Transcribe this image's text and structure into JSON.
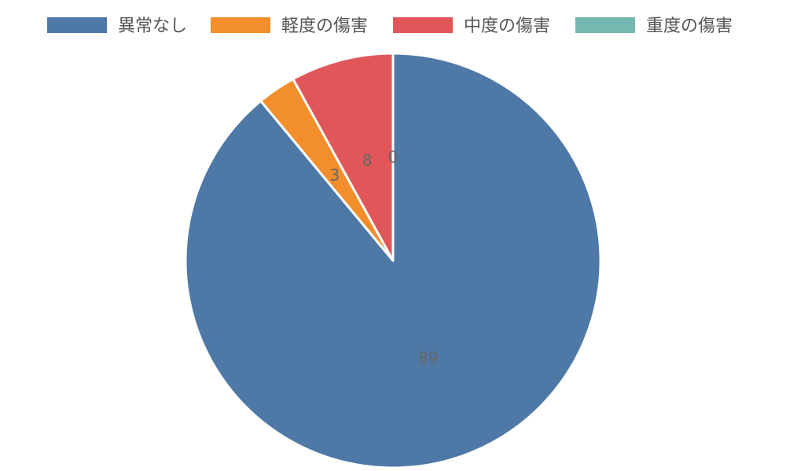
{
  "chart_data": {
    "type": "pie",
    "title": "",
    "legend_position": "top",
    "categories": [
      "異常なし",
      "軽度の傷害",
      "中度の傷害",
      "重度の傷害"
    ],
    "values": [
      89,
      3,
      8,
      0
    ],
    "colors": [
      "#4e79a7",
      "#f28e2b",
      "#e15759",
      "#76b7b2"
    ],
    "data_labels": [
      "89",
      "3",
      "8",
      "0"
    ]
  }
}
